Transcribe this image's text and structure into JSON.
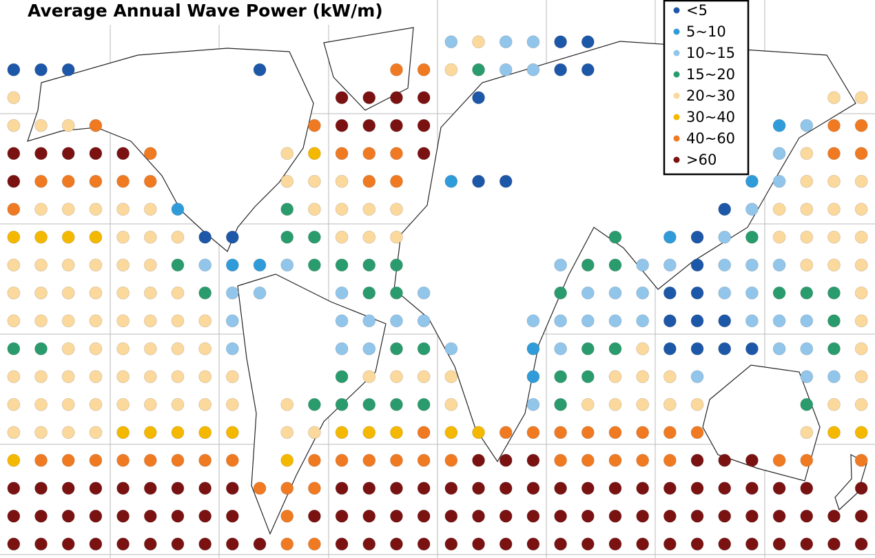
{
  "title": "Average Annual Wave Power (kW/m)",
  "legend": [
    {
      "label": "<5",
      "color": "#1d57a8"
    },
    {
      "label": "5~10",
      "color": "#2f9bd9"
    },
    {
      "label": "10~15",
      "color": "#92c5ea"
    },
    {
      "label": "15~20",
      "color": "#2a9b6c"
    },
    {
      "label": "20~30",
      "color": "#fbd89c"
    },
    {
      "label": "30~40",
      "color": "#f5b800"
    },
    {
      "label": "40~60",
      "color": "#ef7a22"
    },
    {
      "label": ">60",
      "color": "#7a1212"
    }
  ],
  "grid": {
    "rows": [
      [
        null,
        null,
        null,
        null,
        null,
        null,
        null,
        null,
        null,
        null,
        null,
        null,
        null,
        null,
        null,
        null,
        null,
        null,
        null,
        null,
        null,
        null,
        null,
        null,
        null,
        null,
        null,
        null,
        null,
        null,
        null,
        null
      ],
      [
        null,
        null,
        null,
        null,
        null,
        null,
        null,
        null,
        null,
        null,
        null,
        null,
        null,
        null,
        null,
        null,
        2,
        4,
        2,
        2,
        0,
        0,
        null,
        null,
        null,
        null,
        null,
        null,
        null,
        null,
        null,
        null
      ],
      [
        0,
        0,
        0,
        null,
        null,
        null,
        null,
        null,
        null,
        0,
        null,
        null,
        null,
        null,
        6,
        6,
        4,
        3,
        2,
        2,
        0,
        0,
        null,
        null,
        null,
        null,
        null,
        null,
        null,
        null,
        null,
        null
      ],
      [
        4,
        null,
        null,
        null,
        null,
        null,
        null,
        null,
        null,
        null,
        null,
        null,
        7,
        7,
        7,
        7,
        null,
        0,
        null,
        null,
        null,
        null,
        null,
        null,
        null,
        null,
        null,
        null,
        null,
        null,
        4,
        4
      ],
      [
        4,
        4,
        4,
        6,
        null,
        null,
        null,
        null,
        null,
        null,
        null,
        6,
        7,
        7,
        7,
        7,
        null,
        null,
        null,
        null,
        null,
        null,
        null,
        null,
        null,
        null,
        null,
        null,
        1,
        2,
        6,
        6
      ],
      [
        7,
        7,
        7,
        7,
        7,
        6,
        null,
        null,
        null,
        null,
        4,
        5,
        6,
        6,
        6,
        7,
        null,
        null,
        null,
        null,
        null,
        null,
        null,
        null,
        null,
        null,
        null,
        null,
        2,
        4,
        6,
        6
      ],
      [
        7,
        6,
        6,
        6,
        6,
        6,
        null,
        null,
        null,
        null,
        4,
        4,
        4,
        6,
        6,
        null,
        1,
        0,
        0,
        null,
        null,
        null,
        null,
        null,
        null,
        null,
        null,
        1,
        2,
        4,
        4,
        4
      ],
      [
        6,
        4,
        4,
        4,
        4,
        4,
        1,
        null,
        null,
        null,
        3,
        4,
        4,
        4,
        4,
        null,
        null,
        null,
        null,
        null,
        null,
        null,
        null,
        null,
        null,
        null,
        0,
        2,
        4,
        4,
        4,
        4
      ],
      [
        5,
        5,
        5,
        5,
        4,
        4,
        4,
        0,
        0,
        null,
        3,
        3,
        4,
        4,
        4,
        null,
        null,
        null,
        null,
        null,
        null,
        null,
        3,
        null,
        1,
        0,
        2,
        3,
        4,
        4,
        4,
        4
      ],
      [
        4,
        4,
        4,
        4,
        4,
        4,
        3,
        2,
        1,
        1,
        2,
        3,
        3,
        3,
        3,
        null,
        null,
        null,
        null,
        null,
        2,
        3,
        3,
        2,
        2,
        0,
        2,
        2,
        2,
        4,
        4,
        4
      ],
      [
        4,
        4,
        4,
        4,
        4,
        4,
        4,
        3,
        2,
        2,
        null,
        null,
        2,
        3,
        3,
        2,
        null,
        null,
        null,
        null,
        3,
        2,
        2,
        2,
        0,
        0,
        2,
        2,
        3,
        3,
        3,
        4
      ],
      [
        4,
        4,
        4,
        4,
        4,
        4,
        4,
        4,
        2,
        null,
        null,
        null,
        2,
        2,
        2,
        2,
        null,
        null,
        null,
        2,
        2,
        2,
        2,
        2,
        0,
        0,
        0,
        2,
        2,
        2,
        3,
        4
      ],
      [
        3,
        3,
        4,
        4,
        4,
        4,
        4,
        4,
        2,
        null,
        null,
        null,
        2,
        2,
        3,
        3,
        2,
        null,
        null,
        1,
        2,
        3,
        3,
        4,
        0,
        0,
        0,
        0,
        2,
        2,
        3,
        4
      ],
      [
        4,
        4,
        4,
        4,
        4,
        4,
        4,
        4,
        4,
        null,
        null,
        null,
        3,
        4,
        4,
        4,
        4,
        null,
        null,
        1,
        3,
        3,
        4,
        4,
        4,
        2,
        null,
        null,
        null,
        2,
        2,
        4
      ],
      [
        4,
        4,
        4,
        4,
        4,
        4,
        4,
        4,
        4,
        null,
        4,
        3,
        3,
        3,
        3,
        3,
        4,
        null,
        null,
        2,
        3,
        4,
        4,
        4,
        4,
        4,
        null,
        null,
        null,
        3,
        4,
        4
      ],
      [
        4,
        4,
        4,
        4,
        5,
        5,
        5,
        5,
        5,
        null,
        4,
        4,
        5,
        5,
        5,
        6,
        5,
        5,
        6,
        6,
        6,
        6,
        6,
        6,
        6,
        6,
        null,
        null,
        null,
        4,
        5,
        5
      ],
      [
        5,
        6,
        6,
        6,
        6,
        6,
        6,
        6,
        6,
        null,
        5,
        6,
        6,
        6,
        6,
        6,
        6,
        7,
        7,
        7,
        6,
        6,
        6,
        6,
        6,
        7,
        7,
        7,
        6,
        6,
        null,
        6
      ],
      [
        7,
        7,
        7,
        7,
        7,
        7,
        7,
        7,
        7,
        6,
        6,
        6,
        7,
        7,
        7,
        7,
        7,
        7,
        7,
        7,
        7,
        7,
        7,
        7,
        7,
        7,
        7,
        7,
        7,
        7,
        null,
        7
      ],
      [
        7,
        7,
        7,
        7,
        7,
        7,
        7,
        7,
        7,
        null,
        6,
        7,
        7,
        7,
        7,
        7,
        7,
        7,
        7,
        7,
        7,
        7,
        7,
        7,
        7,
        7,
        7,
        7,
        7,
        7,
        7,
        7
      ],
      [
        7,
        7,
        7,
        7,
        7,
        7,
        7,
        7,
        7,
        7,
        6,
        6,
        7,
        7,
        7,
        7,
        7,
        7,
        7,
        7,
        7,
        7,
        7,
        7,
        7,
        7,
        7,
        7,
        7,
        7,
        7,
        7
      ]
    ]
  }
}
